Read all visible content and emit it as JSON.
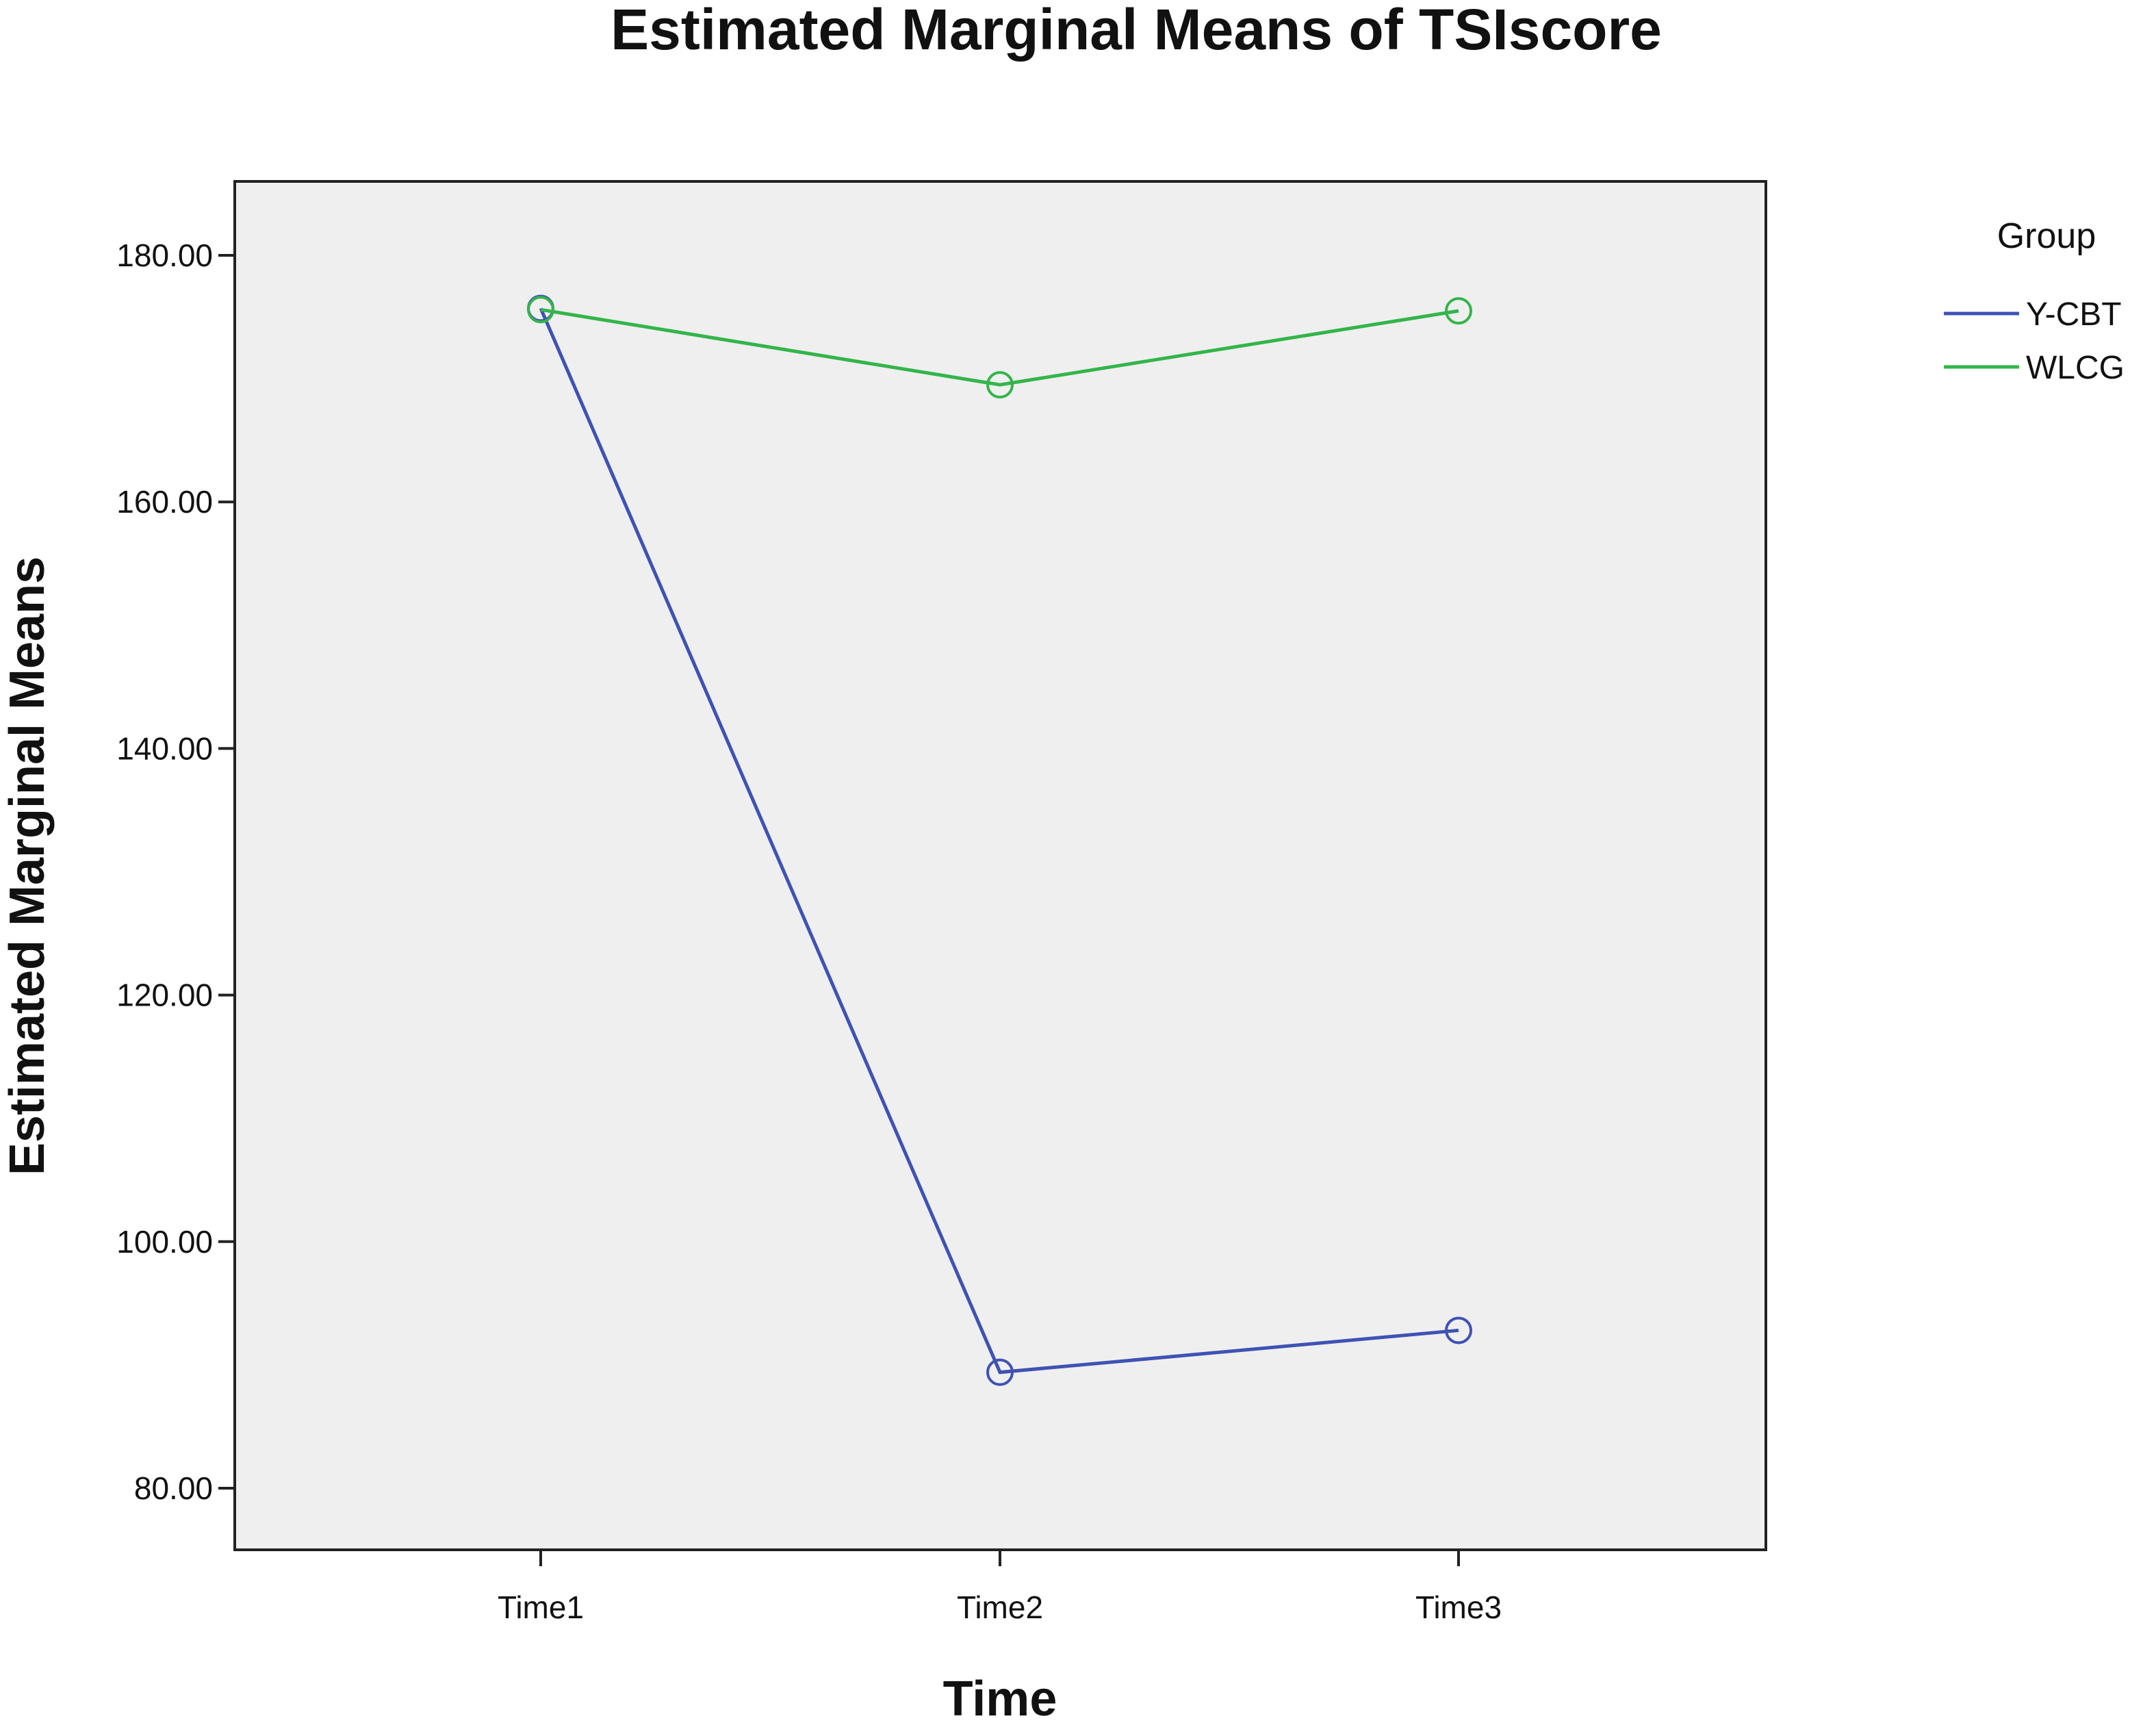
{
  "chart_data": {
    "type": "line",
    "title": "Estimated Marginal Means of TSIscore",
    "xlabel": "Time",
    "ylabel": "Estimated Marginal Means",
    "categories": [
      "Time1",
      "Time2",
      "Time3"
    ],
    "ylim": [
      75,
      186
    ],
    "yticks": [
      80,
      100,
      120,
      140,
      160,
      180
    ],
    "ytick_labels": [
      "80.00",
      "100.00",
      "120.00",
      "140.00",
      "160.00",
      "180.00"
    ],
    "grid": false,
    "legend": {
      "title": "Group",
      "placement": "right"
    },
    "series": [
      {
        "name": "Y-CBT",
        "color": "#3f52b4",
        "values": [
          175.7,
          89.4,
          92.8
        ]
      },
      {
        "name": "WLCG",
        "color": "#33b54a",
        "values": [
          175.6,
          169.5,
          175.5
        ]
      }
    ],
    "plot_background": "#efefef",
    "marker": "open-circle"
  }
}
